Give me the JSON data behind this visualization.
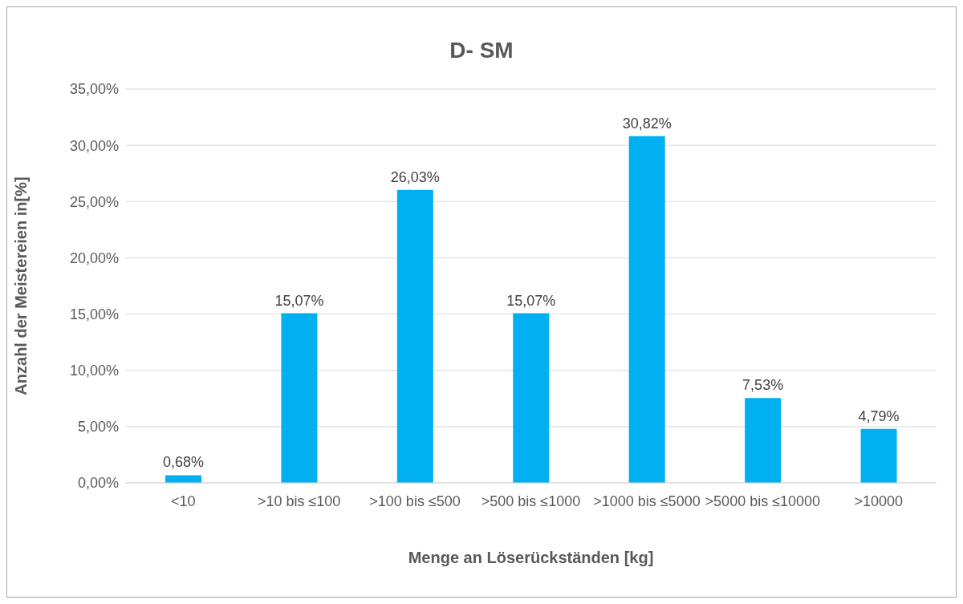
{
  "chart_data": {
    "type": "bar",
    "title": "D- SM",
    "xlabel": "Menge an Löserückständen [kg]",
    "ylabel": "Anzahl der Meistereien in[%]",
    "categories": [
      "<10",
      ">10 bis ≤100",
      ">100 bis ≤500",
      ">500 bis ≤1000",
      ">1000 bis ≤5000",
      ">5000 bis ≤10000",
      ">10000"
    ],
    "values": [
      0.68,
      15.07,
      26.03,
      15.07,
      30.82,
      7.53,
      4.79
    ],
    "value_labels": [
      "0,68%",
      "15,07%",
      "26,03%",
      "15,07%",
      "30,82%",
      "7,53%",
      "4,79%"
    ],
    "color": "#00b0f0",
    "ylim": [
      0,
      35
    ],
    "yticks": [
      {
        "value": 0,
        "label": "0,00%"
      },
      {
        "value": 5,
        "label": "5,00%"
      },
      {
        "value": 10,
        "label": "10,00%"
      },
      {
        "value": 15,
        "label": "15,00%"
      },
      {
        "value": 20,
        "label": "20,00%"
      },
      {
        "value": 25,
        "label": "25,00%"
      },
      {
        "value": 30,
        "label": "30,00%"
      },
      {
        "value": 35,
        "label": "35,00%"
      }
    ],
    "grid": "y"
  }
}
